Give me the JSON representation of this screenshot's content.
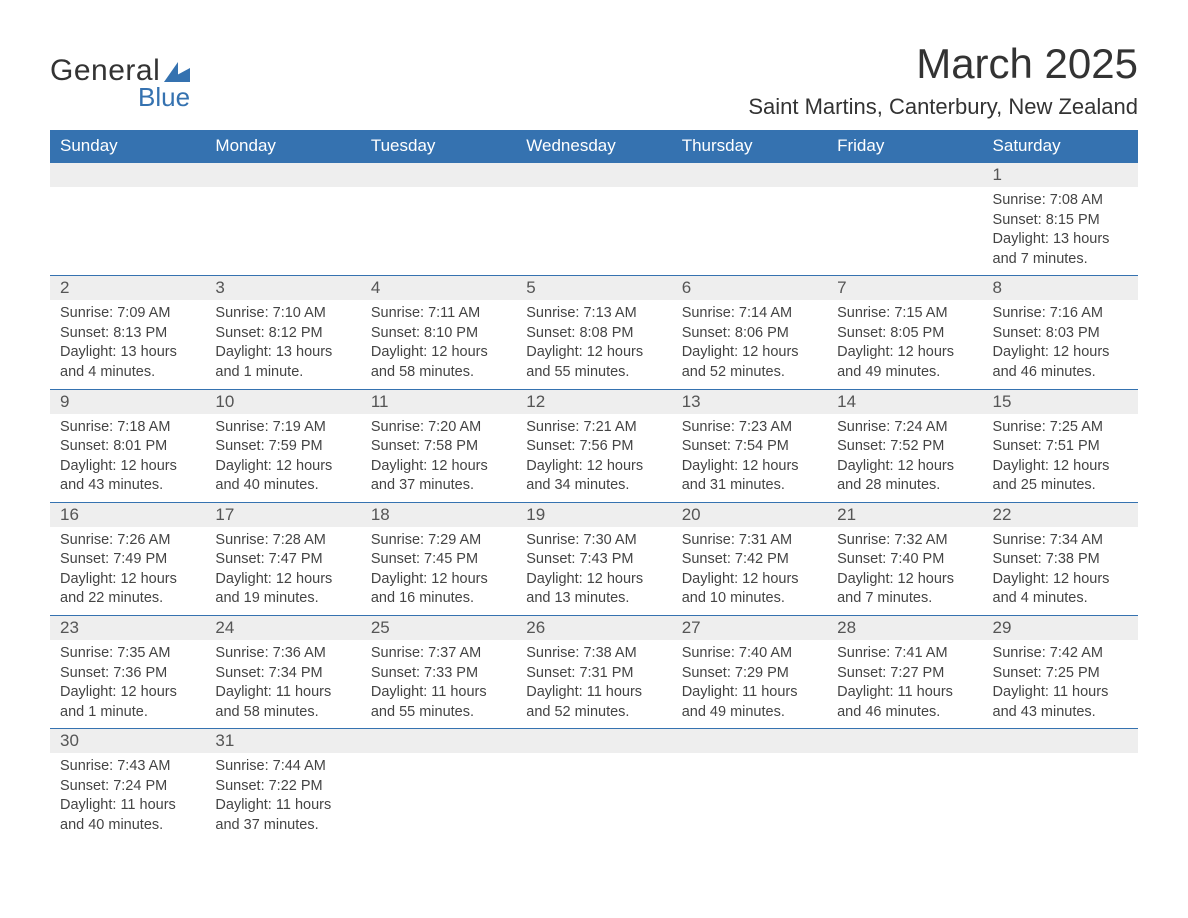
{
  "logo": {
    "text_general": "General",
    "text_blue": "Blue",
    "shape_color": "#3572b0"
  },
  "title": "March 2025",
  "location": "Saint Martins, Canterbury, New Zealand",
  "colors": {
    "header_bg": "#3572b0",
    "header_text": "#ffffff",
    "daynum_bg": "#eeeeee",
    "border": "#3572b0",
    "body_text": "#444444",
    "page_bg": "#ffffff"
  },
  "fonts": {
    "title_size_pt": 32,
    "location_size_pt": 17,
    "header_size_pt": 13,
    "daynum_size_pt": 13,
    "body_size_pt": 11
  },
  "weekdays": [
    "Sunday",
    "Monday",
    "Tuesday",
    "Wednesday",
    "Thursday",
    "Friday",
    "Saturday"
  ],
  "weeks": [
    [
      null,
      null,
      null,
      null,
      null,
      null,
      {
        "n": "1",
        "sr": "Sunrise: 7:08 AM",
        "ss": "Sunset: 8:15 PM",
        "d1": "Daylight: 13 hours",
        "d2": "and 7 minutes."
      }
    ],
    [
      {
        "n": "2",
        "sr": "Sunrise: 7:09 AM",
        "ss": "Sunset: 8:13 PM",
        "d1": "Daylight: 13 hours",
        "d2": "and 4 minutes."
      },
      {
        "n": "3",
        "sr": "Sunrise: 7:10 AM",
        "ss": "Sunset: 8:12 PM",
        "d1": "Daylight: 13 hours",
        "d2": "and 1 minute."
      },
      {
        "n": "4",
        "sr": "Sunrise: 7:11 AM",
        "ss": "Sunset: 8:10 PM",
        "d1": "Daylight: 12 hours",
        "d2": "and 58 minutes."
      },
      {
        "n": "5",
        "sr": "Sunrise: 7:13 AM",
        "ss": "Sunset: 8:08 PM",
        "d1": "Daylight: 12 hours",
        "d2": "and 55 minutes."
      },
      {
        "n": "6",
        "sr": "Sunrise: 7:14 AM",
        "ss": "Sunset: 8:06 PM",
        "d1": "Daylight: 12 hours",
        "d2": "and 52 minutes."
      },
      {
        "n": "7",
        "sr": "Sunrise: 7:15 AM",
        "ss": "Sunset: 8:05 PM",
        "d1": "Daylight: 12 hours",
        "d2": "and 49 minutes."
      },
      {
        "n": "8",
        "sr": "Sunrise: 7:16 AM",
        "ss": "Sunset: 8:03 PM",
        "d1": "Daylight: 12 hours",
        "d2": "and 46 minutes."
      }
    ],
    [
      {
        "n": "9",
        "sr": "Sunrise: 7:18 AM",
        "ss": "Sunset: 8:01 PM",
        "d1": "Daylight: 12 hours",
        "d2": "and 43 minutes."
      },
      {
        "n": "10",
        "sr": "Sunrise: 7:19 AM",
        "ss": "Sunset: 7:59 PM",
        "d1": "Daylight: 12 hours",
        "d2": "and 40 minutes."
      },
      {
        "n": "11",
        "sr": "Sunrise: 7:20 AM",
        "ss": "Sunset: 7:58 PM",
        "d1": "Daylight: 12 hours",
        "d2": "and 37 minutes."
      },
      {
        "n": "12",
        "sr": "Sunrise: 7:21 AM",
        "ss": "Sunset: 7:56 PM",
        "d1": "Daylight: 12 hours",
        "d2": "and 34 minutes."
      },
      {
        "n": "13",
        "sr": "Sunrise: 7:23 AM",
        "ss": "Sunset: 7:54 PM",
        "d1": "Daylight: 12 hours",
        "d2": "and 31 minutes."
      },
      {
        "n": "14",
        "sr": "Sunrise: 7:24 AM",
        "ss": "Sunset: 7:52 PM",
        "d1": "Daylight: 12 hours",
        "d2": "and 28 minutes."
      },
      {
        "n": "15",
        "sr": "Sunrise: 7:25 AM",
        "ss": "Sunset: 7:51 PM",
        "d1": "Daylight: 12 hours",
        "d2": "and 25 minutes."
      }
    ],
    [
      {
        "n": "16",
        "sr": "Sunrise: 7:26 AM",
        "ss": "Sunset: 7:49 PM",
        "d1": "Daylight: 12 hours",
        "d2": "and 22 minutes."
      },
      {
        "n": "17",
        "sr": "Sunrise: 7:28 AM",
        "ss": "Sunset: 7:47 PM",
        "d1": "Daylight: 12 hours",
        "d2": "and 19 minutes."
      },
      {
        "n": "18",
        "sr": "Sunrise: 7:29 AM",
        "ss": "Sunset: 7:45 PM",
        "d1": "Daylight: 12 hours",
        "d2": "and 16 minutes."
      },
      {
        "n": "19",
        "sr": "Sunrise: 7:30 AM",
        "ss": "Sunset: 7:43 PM",
        "d1": "Daylight: 12 hours",
        "d2": "and 13 minutes."
      },
      {
        "n": "20",
        "sr": "Sunrise: 7:31 AM",
        "ss": "Sunset: 7:42 PM",
        "d1": "Daylight: 12 hours",
        "d2": "and 10 minutes."
      },
      {
        "n": "21",
        "sr": "Sunrise: 7:32 AM",
        "ss": "Sunset: 7:40 PM",
        "d1": "Daylight: 12 hours",
        "d2": "and 7 minutes."
      },
      {
        "n": "22",
        "sr": "Sunrise: 7:34 AM",
        "ss": "Sunset: 7:38 PM",
        "d1": "Daylight: 12 hours",
        "d2": "and 4 minutes."
      }
    ],
    [
      {
        "n": "23",
        "sr": "Sunrise: 7:35 AM",
        "ss": "Sunset: 7:36 PM",
        "d1": "Daylight: 12 hours",
        "d2": "and 1 minute."
      },
      {
        "n": "24",
        "sr": "Sunrise: 7:36 AM",
        "ss": "Sunset: 7:34 PM",
        "d1": "Daylight: 11 hours",
        "d2": "and 58 minutes."
      },
      {
        "n": "25",
        "sr": "Sunrise: 7:37 AM",
        "ss": "Sunset: 7:33 PM",
        "d1": "Daylight: 11 hours",
        "d2": "and 55 minutes."
      },
      {
        "n": "26",
        "sr": "Sunrise: 7:38 AM",
        "ss": "Sunset: 7:31 PM",
        "d1": "Daylight: 11 hours",
        "d2": "and 52 minutes."
      },
      {
        "n": "27",
        "sr": "Sunrise: 7:40 AM",
        "ss": "Sunset: 7:29 PM",
        "d1": "Daylight: 11 hours",
        "d2": "and 49 minutes."
      },
      {
        "n": "28",
        "sr": "Sunrise: 7:41 AM",
        "ss": "Sunset: 7:27 PM",
        "d1": "Daylight: 11 hours",
        "d2": "and 46 minutes."
      },
      {
        "n": "29",
        "sr": "Sunrise: 7:42 AM",
        "ss": "Sunset: 7:25 PM",
        "d1": "Daylight: 11 hours",
        "d2": "and 43 minutes."
      }
    ],
    [
      {
        "n": "30",
        "sr": "Sunrise: 7:43 AM",
        "ss": "Sunset: 7:24 PM",
        "d1": "Daylight: 11 hours",
        "d2": "and 40 minutes."
      },
      {
        "n": "31",
        "sr": "Sunrise: 7:44 AM",
        "ss": "Sunset: 7:22 PM",
        "d1": "Daylight: 11 hours",
        "d2": "and 37 minutes."
      },
      null,
      null,
      null,
      null,
      null
    ]
  ]
}
